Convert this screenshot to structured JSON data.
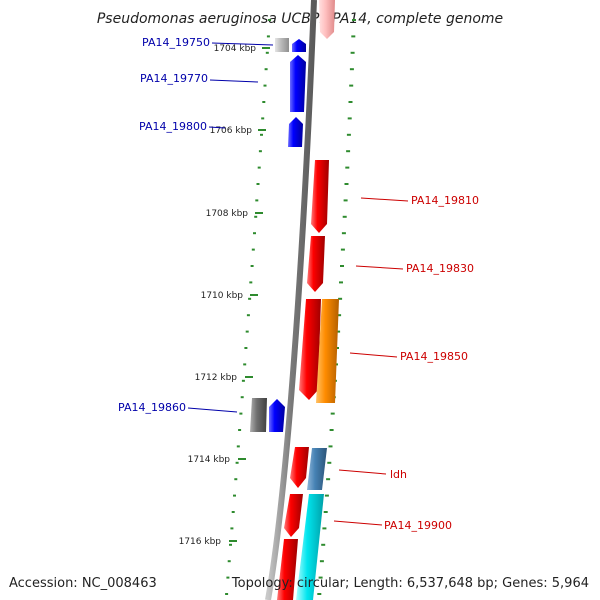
{
  "title": "Pseudomonas aeruginosa UCBPP-PA14, complete genome",
  "footer": {
    "accession": "Accession: NC_008463",
    "summary": "Topology: circular; Length: 6,537,648 bp; Genes: 5,964"
  },
  "kbp_labels": [
    "1704 kbp",
    "1706 kbp",
    "1708 kbp",
    "1710 kbp",
    "1712 kbp",
    "1714 kbp",
    "1716 kbp"
  ],
  "gene_labels": {
    "blue": [
      "PA14_19750",
      "PA14_19770",
      "PA14_19800",
      "PA14_19860"
    ],
    "red": [
      "PA14_19810",
      "PA14_19830",
      "PA14_19850",
      "ldh",
      "PA14_19900"
    ]
  },
  "colors": {
    "backbone": "#808080",
    "tick": "#2e8b2e",
    "forward_gene": "#0000ff",
    "reverse_gene": "#ff0000",
    "orange_gene": "#ff8c00",
    "cyan_gene": "#00e5ee",
    "steel_gene": "#4682b4",
    "gray_gene": "#707070",
    "light_gray_gene": "#bdbdbd",
    "pink_gene": "#ffc0c0",
    "blue_label": "#0000aa",
    "red_label": "#cc0000"
  }
}
